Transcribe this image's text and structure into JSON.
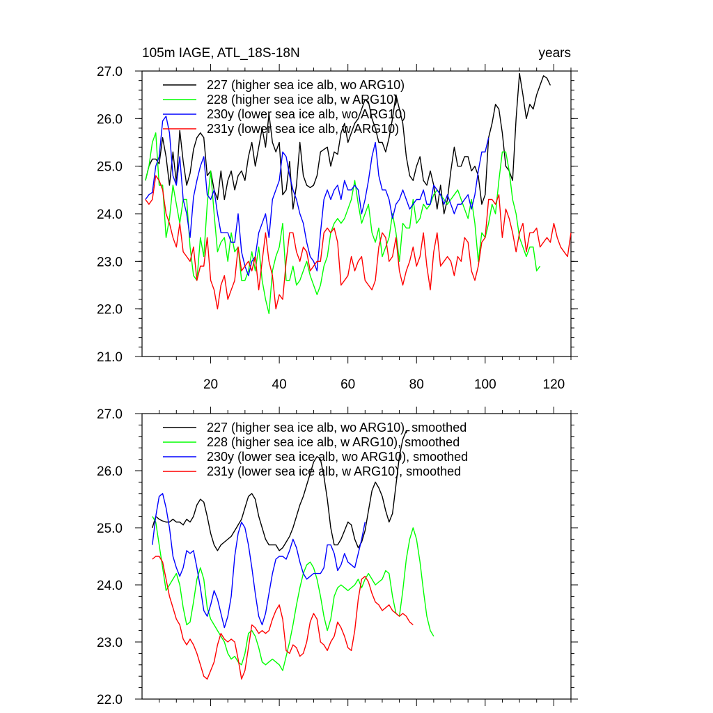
{
  "chart_data": [
    {
      "type": "line",
      "title_left": "105m IAGE, ATL_18S-18N",
      "title_right": "years",
      "xlabel": "",
      "ylabel": "",
      "xlim": [
        0,
        125
      ],
      "ylim": [
        21.0,
        27.0
      ],
      "x_ticks": [
        20,
        40,
        60,
        80,
        100,
        120
      ],
      "y_ticks": [
        "21.0",
        "22.0",
        "23.0",
        "24.0",
        "25.0",
        "26.0",
        "27.0"
      ],
      "legend_position": "top-left",
      "series": [
        {
          "name": "227 (higher sea ice alb, wo ARG10)",
          "color": "#000000",
          "x_start": 1,
          "values": [
            24.7,
            25.0,
            25.15,
            25.15,
            25.05,
            25.6,
            25.2,
            24.6,
            25.3,
            24.65,
            25.75,
            25.1,
            24.6,
            24.85,
            25.35,
            25.6,
            25.7,
            25.6,
            24.8,
            24.9,
            24.5,
            24.3,
            24.9,
            24.3,
            24.7,
            24.9,
            24.5,
            24.8,
            24.9,
            24.7,
            25.2,
            25.5,
            25.0,
            25.4,
            25.8,
            25.4,
            26.1,
            25.5,
            25.3,
            25.5,
            24.4,
            24.5,
            25.1,
            24.1,
            24.6,
            25.5,
            24.8,
            24.6,
            24.55,
            24.6,
            24.8,
            25.3,
            25.35,
            25.4,
            25.0,
            25.3,
            25.25,
            25.7,
            25.9,
            25.5,
            25.7,
            25.9,
            26.0,
            26.2,
            26.4,
            26.35,
            26.0,
            25.8,
            25.5,
            25.5,
            25.3,
            25.6,
            26.0,
            26.5,
            26.2,
            25.9,
            25.2,
            24.8,
            24.7,
            25.0,
            25.2,
            24.7,
            24.6,
            24.9,
            24.6,
            24.1,
            24.6,
            24.0,
            24.3,
            24.9,
            25.4,
            25.0,
            25.0,
            25.2,
            25.2,
            24.9,
            25.0,
            24.8,
            24.2,
            24.4,
            25.6,
            25.9,
            26.3,
            26.2,
            25.7,
            25.0,
            24.9,
            24.7,
            26.0,
            26.95,
            26.5,
            26.0,
            26.3,
            26.2,
            26.5,
            26.7,
            26.9,
            26.85,
            26.7
          ]
        },
        {
          "name": "228 (higher sea ice alb, w ARG10)",
          "color": "#00ff00",
          "x_start": 1,
          "values": [
            24.7,
            25.0,
            25.5,
            25.7,
            24.6,
            24.6,
            23.5,
            23.9,
            24.6,
            24.2,
            23.8,
            24.3,
            24.3,
            23.3,
            22.7,
            22.6,
            23.5,
            23.1,
            24.2,
            24.9,
            24.0,
            23.2,
            23.4,
            23.5,
            23.0,
            23.6,
            23.2,
            23.3,
            22.6,
            22.6,
            22.8,
            23.2,
            22.8,
            23.3,
            22.6,
            22.2,
            21.9,
            22.8,
            23.1,
            23.3,
            23.8,
            22.6,
            22.6,
            22.9,
            22.5,
            22.6,
            22.8,
            23.0,
            22.7,
            22.5,
            22.3,
            22.5,
            22.9,
            23.1,
            23.6,
            23.8,
            23.9,
            23.8,
            23.9,
            24.1,
            24.3,
            24.7,
            24.2,
            23.8,
            24.0,
            24.2,
            23.6,
            23.4,
            23.7,
            23.1,
            23.3,
            23.5,
            24.0,
            23.6,
            23.0,
            23.8,
            23.7,
            23.7,
            24.3,
            23.8,
            23.9,
            24.2,
            24.1,
            24.2,
            24.4,
            24.5,
            24.4,
            24.3,
            24.2,
            24.3,
            24.4,
            24.5,
            24.3,
            24.1,
            23.9,
            24.3,
            23.8,
            23.0,
            23.6,
            23.5,
            23.8,
            24.2,
            24.0,
            24.7,
            25.3,
            25.3,
            24.9,
            24.3,
            24.0,
            23.5,
            23.3,
            23.1,
            23.3,
            23.3,
            22.8,
            22.9
          ]
        },
        {
          "name": "230y (lower sea ice alb, wo ARG10)",
          "color": "#0000ff",
          "x_start": 1,
          "values": [
            24.3,
            24.4,
            24.45,
            25.0,
            25.2,
            25.95,
            26.05,
            25.7,
            24.8,
            24.6,
            25.2,
            24.3,
            24.0,
            23.5,
            24.35,
            24.7,
            25.0,
            25.2,
            24.4,
            24.3,
            24.5,
            24.0,
            23.6,
            23.6,
            23.6,
            23.4,
            23.4,
            24.0,
            23.2,
            22.9,
            22.7,
            23.0,
            23.1,
            23.6,
            23.8,
            24.0,
            23.5,
            24.3,
            24.5,
            24.7,
            25.3,
            25.2,
            24.8,
            24.5,
            24.3,
            24.0,
            23.8,
            23.4,
            23.1,
            23.0,
            22.8,
            23.6,
            24.3,
            24.5,
            24.3,
            24.5,
            24.6,
            24.3,
            24.7,
            24.5,
            24.5,
            24.6,
            24.5,
            24.0,
            24.3,
            24.7,
            25.2,
            25.5,
            24.8,
            24.5,
            24.5,
            24.3,
            23.9,
            24.2,
            24.3,
            24.5,
            24.3,
            24.1,
            24.2,
            24.3,
            24.3,
            24.5,
            24.2,
            24.2,
            24.6,
            24.5,
            24.4,
            24.2,
            24.4,
            24.2,
            24.0,
            24.2,
            24.2,
            24.3,
            24.4,
            24.1,
            24.4,
            24.9,
            25.3,
            25.3,
            25.6
          ]
        },
        {
          "name": "231y (lower sea ice alb, w ARG10)",
          "color": "#ff0000",
          "x_start": 1,
          "values": [
            24.3,
            24.2,
            24.3,
            24.8,
            24.7,
            24.5,
            24.0,
            23.8,
            23.5,
            23.3,
            23.8,
            23.2,
            23.1,
            23.0,
            23.3,
            22.6,
            22.9,
            22.9,
            23.5,
            22.6,
            22.4,
            22.0,
            22.5,
            22.7,
            22.2,
            22.4,
            22.6,
            23.3,
            22.8,
            22.9,
            23.0,
            22.8,
            23.1,
            22.4,
            23.0,
            23.6,
            23.0,
            22.7,
            22.0,
            22.3,
            22.2,
            23.0,
            23.6,
            23.6,
            23.2,
            23.0,
            23.3,
            23.2,
            22.8,
            22.9,
            23.0,
            23.0,
            23.6,
            23.7,
            23.6,
            23.7,
            23.4,
            22.5,
            22.6,
            22.7,
            23.1,
            22.8,
            23.0,
            23.1,
            22.6,
            22.5,
            22.4,
            22.6,
            23.3,
            23.6,
            23.5,
            23.0,
            23.1,
            23.5,
            22.8,
            22.5,
            22.8,
            23.0,
            23.3,
            22.9,
            23.1,
            23.6,
            22.9,
            22.4,
            23.2,
            23.6,
            22.9,
            23.0,
            23.1,
            23.0,
            22.7,
            23.1,
            23.0,
            23.5,
            23.4,
            22.8,
            22.6,
            22.9,
            23.4,
            23.5,
            24.3,
            24.3,
            24.2,
            24.4,
            23.5,
            24.1,
            23.9,
            23.6,
            23.2,
            23.6,
            23.8,
            23.2,
            23.6,
            23.6,
            23.7,
            23.3,
            23.4,
            23.5,
            23.4,
            23.8,
            23.5,
            23.3,
            23.2,
            23.1,
            23.6
          ]
        }
      ]
    },
    {
      "type": "line",
      "title": "",
      "xlabel": "",
      "ylabel": "",
      "xlim": [
        0,
        125
      ],
      "ylim": [
        22.0,
        27.0
      ],
      "y_ticks": [
        "22.0",
        "23.0",
        "24.0",
        "25.0",
        "26.0",
        "27.0"
      ],
      "legend_position": "top-left",
      "series": [
        {
          "name": "227 (higher sea ice alb, wo ARG10), smoothed",
          "color": "#000000",
          "x_start": 3,
          "values": [
            25.0,
            25.2,
            25.15,
            25.12,
            25.1,
            25.1,
            25.15,
            25.1,
            25.1,
            25.05,
            25.15,
            25.1,
            25.2,
            25.4,
            25.5,
            25.45,
            25.2,
            24.9,
            24.7,
            24.6,
            24.7,
            24.75,
            24.8,
            24.85,
            24.95,
            25.05,
            25.15,
            25.35,
            25.55,
            25.6,
            25.5,
            25.2,
            25.0,
            24.8,
            24.7,
            24.7,
            24.7,
            24.6,
            24.65,
            24.75,
            24.85,
            25.0,
            25.2,
            25.4,
            25.55,
            25.75,
            25.95,
            26.15,
            26.25,
            26.2,
            25.9,
            25.5,
            25.0,
            24.7,
            24.7,
            24.8,
            24.95,
            25.1,
            25.05,
            24.8,
            24.65,
            24.75,
            24.95,
            25.3,
            25.65,
            25.8,
            25.7,
            25.55,
            25.3,
            25.1,
            25.25,
            25.75,
            26.25,
            26.55,
            26.7,
            26.7
          ]
        },
        {
          "name": "228 (higher sea ice alb, w ARG10), smoothed",
          "color": "#00ff00",
          "x_start": 3,
          "values": [
            25.2,
            25.1,
            24.7,
            24.3,
            23.9,
            24.0,
            24.1,
            24.2,
            24.0,
            23.6,
            23.3,
            23.35,
            23.7,
            24.1,
            24.3,
            24.1,
            23.6,
            23.4,
            23.3,
            23.2,
            23.1,
            23.0,
            22.8,
            22.7,
            22.75,
            22.65,
            22.6,
            22.8,
            23.15,
            23.2,
            23.1,
            22.9,
            22.65,
            22.6,
            22.65,
            22.7,
            22.65,
            22.6,
            22.5,
            22.75,
            23.0,
            23.3,
            23.65,
            23.95,
            24.2,
            24.35,
            24.4,
            24.3,
            24.1,
            23.8,
            23.45,
            23.2,
            23.4,
            23.8,
            23.95,
            24.0,
            23.95,
            23.9,
            23.95,
            24.0,
            24.1,
            23.95,
            24.1,
            24.2,
            24.1,
            24.0,
            24.05,
            24.1,
            24.25,
            24.2,
            23.8,
            23.5,
            23.45,
            23.9,
            24.45,
            24.8,
            25.0,
            24.8,
            24.4,
            23.9,
            23.45,
            23.2,
            23.1
          ]
        },
        {
          "name": "230y (lower sea ice alb, wo ARG10), smoothed",
          "color": "#0000ff",
          "x_start": 3,
          "values": [
            24.7,
            25.2,
            25.55,
            25.6,
            25.35,
            25.0,
            24.5,
            24.3,
            24.15,
            24.3,
            24.6,
            24.55,
            24.6,
            24.3,
            23.95,
            23.55,
            23.45,
            23.65,
            23.9,
            23.75,
            23.5,
            23.25,
            23.45,
            23.8,
            24.5,
            24.9,
            25.1,
            25.0,
            24.7,
            24.3,
            23.85,
            23.45,
            23.3,
            23.5,
            23.85,
            24.2,
            24.45,
            24.5,
            24.5,
            24.45,
            24.6,
            24.8,
            24.65,
            24.4,
            24.2,
            24.1,
            24.15,
            24.2,
            24.2,
            24.2,
            24.3,
            24.7,
            24.7,
            24.55,
            24.25,
            24.35,
            24.55,
            24.4,
            24.35,
            24.3,
            24.55,
            24.8,
            25.1
          ]
        },
        {
          "name": "231y (lower sea ice alb, w ARG10), smoothed",
          "color": "#ff0000",
          "x_start": 3,
          "values": [
            24.45,
            24.5,
            24.5,
            24.4,
            24.1,
            23.8,
            23.6,
            23.4,
            23.3,
            23.05,
            22.95,
            23.05,
            22.95,
            22.8,
            22.6,
            22.4,
            22.35,
            22.5,
            22.65,
            22.95,
            23.15,
            23.05,
            23.0,
            23.05,
            23.0,
            22.7,
            22.35,
            22.5,
            22.9,
            23.3,
            23.25,
            23.15,
            23.2,
            23.15,
            23.2,
            23.4,
            23.55,
            23.65,
            23.4,
            22.85,
            22.8,
            22.95,
            22.9,
            22.75,
            22.8,
            23.0,
            23.35,
            23.5,
            23.4,
            23.0,
            22.95,
            22.85,
            23.0,
            23.1,
            23.35,
            23.25,
            23.1,
            22.9,
            22.85,
            23.2,
            23.75,
            24.1,
            24.15,
            24.05,
            23.85,
            23.7,
            23.65,
            23.55,
            23.6,
            23.65,
            23.55,
            23.5,
            23.45,
            23.5,
            23.45,
            23.35,
            23.3
          ]
        }
      ]
    }
  ]
}
